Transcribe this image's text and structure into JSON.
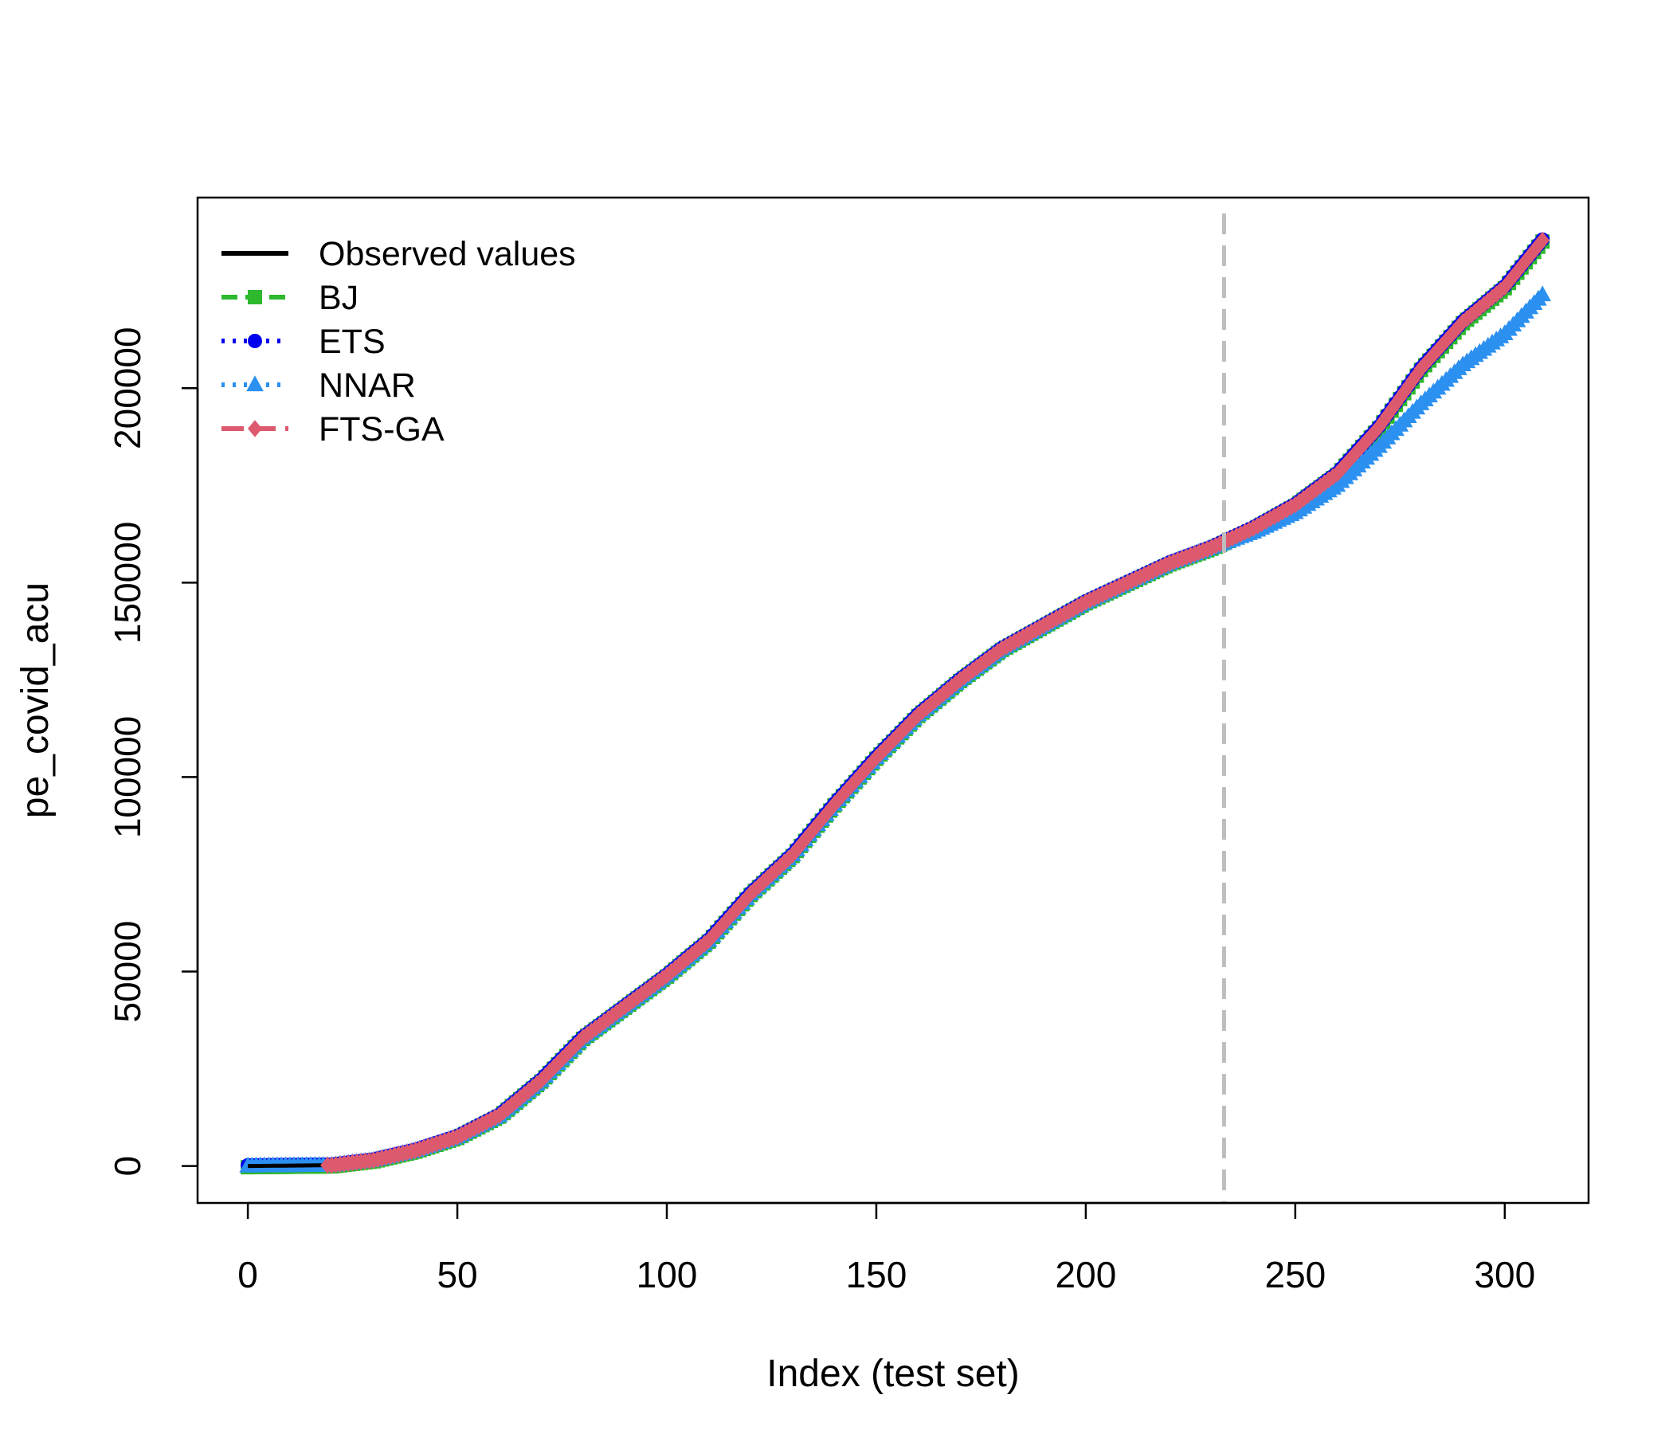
{
  "chart_data": {
    "type": "line",
    "xlabel": "Index (test set)",
    "ylabel": "pe_covid_acu",
    "xlim": [
      -12,
      320
    ],
    "ylim": [
      -9500,
      249000
    ],
    "x_ticks": [
      0,
      50,
      100,
      150,
      200,
      250,
      300
    ],
    "y_ticks": [
      0,
      50000,
      100000,
      150000,
      200000
    ],
    "x_tick_labels": [
      "0",
      "50",
      "100",
      "150",
      "200",
      "250",
      "300"
    ],
    "y_tick_labels": [
      "0",
      "50000",
      "100000",
      "150000",
      "200000"
    ],
    "grid": false,
    "legend_position": "top-left",
    "vline": {
      "x": 233,
      "color": "#bebebe",
      "style": "dashed"
    },
    "observed_knots": [
      [
        0,
        0
      ],
      [
        20,
        200
      ],
      [
        30,
        1500
      ],
      [
        40,
        4000
      ],
      [
        50,
        7500
      ],
      [
        60,
        13000
      ],
      [
        70,
        22000
      ],
      [
        80,
        33000
      ],
      [
        90,
        41000
      ],
      [
        100,
        49000
      ],
      [
        110,
        58000
      ],
      [
        120,
        70000
      ],
      [
        130,
        80000
      ],
      [
        140,
        93000
      ],
      [
        150,
        105000
      ],
      [
        160,
        116000
      ],
      [
        170,
        125000
      ],
      [
        180,
        133000
      ],
      [
        190,
        139000
      ],
      [
        200,
        145000
      ],
      [
        210,
        150000
      ],
      [
        220,
        155000
      ],
      [
        230,
        159000
      ],
      [
        240,
        164000
      ],
      [
        250,
        170000
      ],
      [
        260,
        178000
      ],
      [
        270,
        190000
      ],
      [
        280,
        205000
      ],
      [
        290,
        217000
      ],
      [
        300,
        226000
      ],
      [
        309,
        238000
      ]
    ],
    "nnar_knots": [
      [
        0,
        0
      ],
      [
        20,
        200
      ],
      [
        30,
        1500
      ],
      [
        40,
        4000
      ],
      [
        50,
        7500
      ],
      [
        60,
        13000
      ],
      [
        70,
        22000
      ],
      [
        80,
        33000
      ],
      [
        90,
        41000
      ],
      [
        100,
        49000
      ],
      [
        110,
        58000
      ],
      [
        120,
        70000
      ],
      [
        130,
        80000
      ],
      [
        140,
        93000
      ],
      [
        150,
        105000
      ],
      [
        160,
        116000
      ],
      [
        170,
        125000
      ],
      [
        180,
        133000
      ],
      [
        190,
        139000
      ],
      [
        200,
        145000
      ],
      [
        210,
        150000
      ],
      [
        220,
        155000
      ],
      [
        230,
        159000
      ],
      [
        240,
        163000
      ],
      [
        250,
        168000
      ],
      [
        260,
        175000
      ],
      [
        270,
        185000
      ],
      [
        280,
        196000
      ],
      [
        290,
        206000
      ],
      [
        300,
        214000
      ],
      [
        309,
        224000
      ]
    ],
    "series": [
      {
        "name": "Observed values",
        "color": "#000000",
        "dash": "",
        "marker": "none",
        "knots": "observed_knots",
        "start": 0,
        "offset": 0
      },
      {
        "name": "BJ",
        "color": "#2db82d",
        "dash": "20,10",
        "marker": "square",
        "knots": "observed_knots",
        "start": 0,
        "offset": -300
      },
      {
        "name": "ETS",
        "color": "#0000ee",
        "dash": "4,10",
        "marker": "circle",
        "knots": "observed_knots",
        "start": 0,
        "offset": 200
      },
      {
        "name": "NNAR",
        "color": "#2b90f0",
        "dash": "4,10",
        "marker": "triangle",
        "knots": "nnar_knots",
        "start": 0,
        "offset": 0
      },
      {
        "name": "FTS-GA",
        "color": "#dd5a6e",
        "dash": "28,12",
        "marker": "diamond",
        "knots": "observed_knots",
        "start": 19,
        "offset": 0
      }
    ],
    "legend_entries": [
      {
        "label": "Observed values",
        "color": "#000000",
        "dash": "",
        "marker": "none"
      },
      {
        "label": "BJ",
        "color": "#2db82d",
        "dash": "20,10",
        "marker": "square"
      },
      {
        "label": "ETS",
        "color": "#0000ee",
        "dash": "4,10",
        "marker": "circle"
      },
      {
        "label": "NNAR",
        "color": "#2b90f0",
        "dash": "4,10",
        "marker": "triangle"
      },
      {
        "label": "FTS-GA",
        "color": "#dd5a6e",
        "dash": "28,12",
        "marker": "diamond"
      }
    ]
  }
}
